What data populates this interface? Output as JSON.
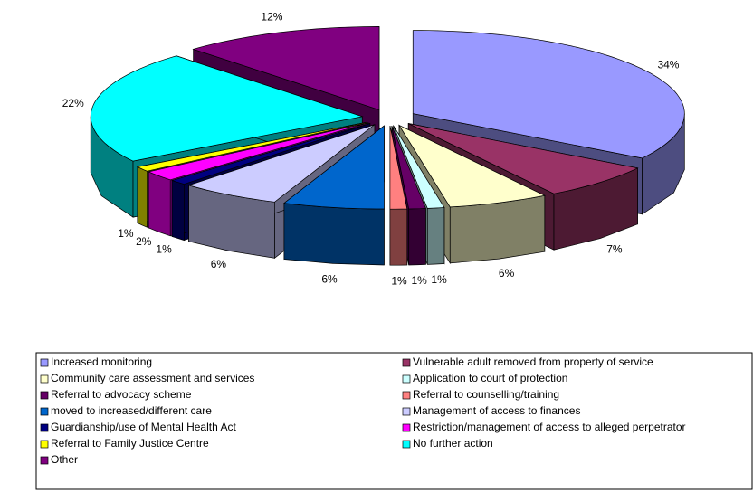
{
  "chart_data": {
    "type": "pie",
    "categories": [
      "Increased monitoring",
      "Vulnerable adult removed from property of service",
      "Community care assessment and services",
      "Application to court of protection",
      "Referral to advocacy scheme",
      "Referral to counselling/training",
      "moved to increased/different care",
      "Management of access to finances",
      "Guardianship/use of Mental Health Act",
      "Restriction/management of access to alleged perpetrator",
      "Referral to Family Justice Centre",
      "No further action",
      "Other"
    ],
    "values": [
      34,
      7,
      6,
      1,
      1,
      1,
      6,
      6,
      1,
      2,
      1,
      22,
      12
    ],
    "value_labels": [
      "34%",
      "7%",
      "6%",
      "1%",
      "1%",
      "1%",
      "6%",
      "6%",
      "1%",
      "2%",
      "1%",
      "22%",
      "12%"
    ],
    "colors": [
      "#9999ff",
      "#993366",
      "#ffffcc",
      "#ccffff",
      "#660066",
      "#ff8080",
      "#0066cc",
      "#ccccff",
      "#000080",
      "#ff00ff",
      "#ffff00",
      "#00ffff",
      "#800080"
    ],
    "legend": "bottom"
  }
}
